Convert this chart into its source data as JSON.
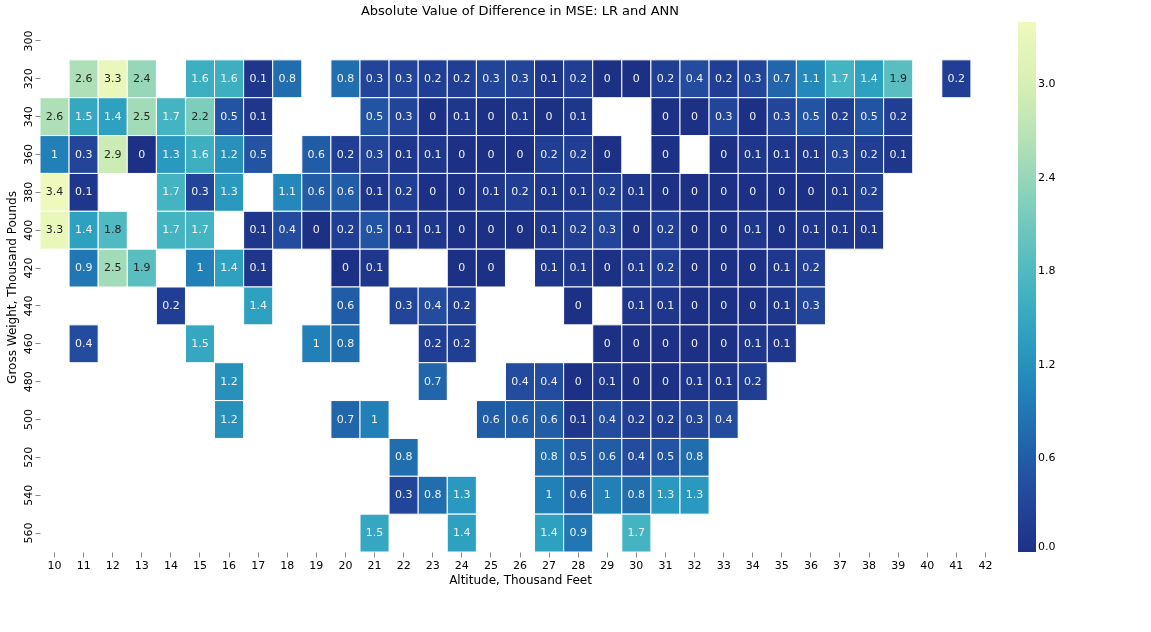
{
  "chart_data": {
    "type": "heatmap",
    "title": "Absolute Value of Difference in MSE: LR and ANN",
    "xlabel": "Altitude, Thousand Feet",
    "ylabel": "Gross Weight, Thousand Pounds",
    "categories": [
      "10",
      "11",
      "12",
      "13",
      "14",
      "15",
      "16",
      "17",
      "18",
      "19",
      "20",
      "21",
      "22",
      "23",
      "24",
      "25",
      "26",
      "27",
      "28",
      "29",
      "30",
      "31",
      "32",
      "33",
      "34",
      "35",
      "36",
      "37",
      "38",
      "39",
      "40",
      "41",
      "42"
    ],
    "y_categories": [
      "300",
      "320",
      "340",
      "360",
      "380",
      "400",
      "420",
      "440",
      "460",
      "480",
      "500",
      "520",
      "540",
      "560"
    ],
    "cells": [
      [
        null,
        null,
        null,
        null,
        null,
        null,
        null,
        null,
        null,
        null,
        null,
        null,
        null,
        null,
        null,
        null,
        null,
        null,
        null,
        null,
        null,
        null,
        null,
        null,
        null,
        null,
        null,
        null,
        null,
        null,
        null,
        null,
        null
      ],
      [
        null,
        2.6,
        3.3,
        2.4,
        null,
        1.6,
        1.6,
        0.1,
        0.8,
        null,
        0.8,
        0.3,
        0.3,
        0.2,
        0.2,
        0.3,
        0.3,
        0.1,
        0.2,
        0,
        0,
        0.2,
        0.4,
        0.2,
        0.3,
        0.7,
        1.1,
        1.7,
        1.4,
        1.9,
        null,
        0.2,
        null
      ],
      [
        2.6,
        1.5,
        1.4,
        2.5,
        1.7,
        2.2,
        0.5,
        0.1,
        null,
        null,
        null,
        0.5,
        0.3,
        0,
        0.1,
        0,
        0.1,
        0,
        0.1,
        null,
        null,
        0,
        0,
        0.3,
        0,
        0.3,
        0.5,
        0.2,
        0.5,
        0.2,
        null,
        null,
        null
      ],
      [
        1,
        0.3,
        2.9,
        0,
        1.3,
        1.6,
        1.2,
        0.5,
        null,
        0.6,
        0.2,
        0.3,
        0.1,
        0.1,
        0,
        0,
        0,
        0.2,
        0.2,
        0,
        null,
        0,
        null,
        0,
        0.1,
        0.1,
        0.1,
        0.3,
        0.2,
        0.1,
        null,
        null,
        null
      ],
      [
        3.4,
        0.1,
        null,
        null,
        1.7,
        0.3,
        1.3,
        null,
        1.1,
        0.6,
        0.6,
        0.1,
        0.2,
        0,
        0,
        0.1,
        0.2,
        0.1,
        0.1,
        0.2,
        0.1,
        0,
        0,
        0,
        0,
        0,
        0,
        0.1,
        0.2,
        null,
        null,
        null,
        null
      ],
      [
        3.3,
        1.4,
        1.8,
        null,
        1.7,
        1.7,
        null,
        0.1,
        0.4,
        0,
        0.2,
        0.5,
        0.1,
        0.1,
        0,
        0,
        0,
        0.1,
        0.2,
        0.3,
        0,
        0.2,
        0,
        0,
        0.1,
        0,
        0.1,
        0.1,
        0.1,
        null,
        null,
        null,
        null
      ],
      [
        null,
        0.9,
        2.5,
        1.9,
        null,
        1,
        1.4,
        0.1,
        null,
        null,
        0,
        0.1,
        null,
        null,
        0,
        0,
        null,
        0.1,
        0.1,
        0,
        0.1,
        0.2,
        0,
        0,
        0,
        0.1,
        0.2,
        null,
        null,
        null,
        null,
        null,
        null
      ],
      [
        null,
        null,
        null,
        null,
        0.2,
        null,
        null,
        1.4,
        null,
        null,
        0.6,
        null,
        0.3,
        0.4,
        0.2,
        null,
        null,
        null,
        0,
        null,
        0.1,
        0.1,
        0,
        0,
        0,
        0.1,
        0.3,
        null,
        null,
        null,
        null,
        null,
        null
      ],
      [
        null,
        0.4,
        null,
        null,
        null,
        1.5,
        null,
        null,
        null,
        1,
        0.8,
        null,
        null,
        0.2,
        0.2,
        null,
        null,
        null,
        null,
        0,
        0,
        0,
        0,
        0,
        0.1,
        0.1,
        null,
        null,
        null,
        null,
        null,
        null,
        null
      ],
      [
        null,
        null,
        null,
        null,
        null,
        null,
        1.2,
        null,
        null,
        null,
        null,
        null,
        null,
        0.7,
        null,
        null,
        0.4,
        0.4,
        0,
        0.1,
        0,
        0,
        0.1,
        0.1,
        0.2,
        null,
        null,
        null,
        null,
        null,
        null,
        null,
        null
      ],
      [
        null,
        null,
        null,
        null,
        null,
        null,
        1.2,
        null,
        null,
        null,
        0.7,
        1,
        null,
        null,
        null,
        0.6,
        0.6,
        0.6,
        0.1,
        0.4,
        0.2,
        0.2,
        0.3,
        0.4,
        null,
        null,
        null,
        null,
        null,
        null,
        null,
        null,
        null
      ],
      [
        null,
        null,
        null,
        null,
        null,
        null,
        null,
        null,
        null,
        null,
        null,
        null,
        0.8,
        null,
        null,
        null,
        null,
        0.8,
        0.5,
        0.6,
        0.4,
        0.5,
        0.8,
        null,
        null,
        null,
        null,
        null,
        null,
        null,
        null,
        null,
        null
      ],
      [
        null,
        null,
        null,
        null,
        null,
        null,
        null,
        null,
        null,
        null,
        null,
        null,
        0.3,
        0.8,
        1.3,
        null,
        null,
        1,
        0.6,
        1,
        0.8,
        1.3,
        1.3,
        null,
        null,
        null,
        null,
        null,
        null,
        null,
        null,
        null,
        null
      ],
      [
        null,
        null,
        null,
        null,
        null,
        null,
        null,
        null,
        null,
        null,
        null,
        1.5,
        null,
        null,
        1.4,
        null,
        null,
        1.4,
        0.9,
        null,
        1.7,
        null,
        null,
        null,
        null,
        null,
        null,
        null,
        null,
        null,
        null,
        null,
        null
      ]
    ],
    "clim": [
      0,
      3.4
    ],
    "cticks": [
      {
        "value": 0,
        "label": "0.0"
      },
      0.6,
      1.2,
      1.8,
      2.4,
      {
        "value": 3,
        "label": "3.0"
      }
    ],
    "data_labels": true
  }
}
